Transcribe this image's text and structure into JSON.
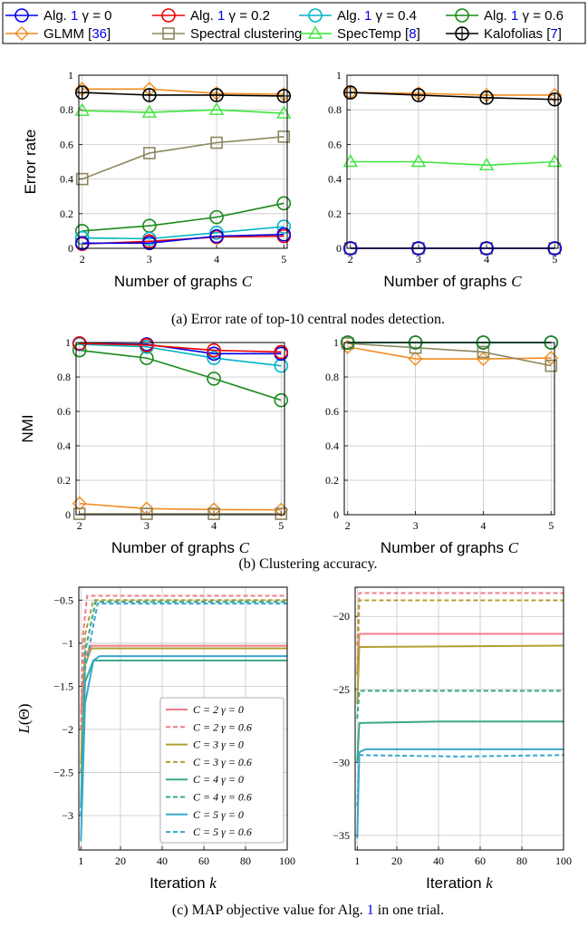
{
  "legend": {
    "entries": [
      {
        "key": "alg_g0",
        "label_pre": "Alg. ",
        "label_ref": "1",
        "label_post": " γ = 0"
      },
      {
        "key": "alg_g02",
        "label_pre": "Alg. ",
        "label_ref": "1",
        "label_post": " γ = 0.2"
      },
      {
        "key": "alg_g04",
        "label_pre": "Alg. ",
        "label_ref": "1",
        "label_post": " γ = 0.4"
      },
      {
        "key": "alg_g06",
        "label_pre": "Alg. ",
        "label_ref": "1",
        "label_post": " γ = 0.6"
      },
      {
        "key": "glmm",
        "label_pre": "GLMM [",
        "label_ref": "36",
        "label_post": "]"
      },
      {
        "key": "spectral",
        "label_pre": "Spectral clustering",
        "label_ref": "",
        "label_post": ""
      },
      {
        "key": "spectemp",
        "label_pre": "SpecTemp [",
        "label_ref": "8",
        "label_post": "]"
      },
      {
        "key": "kalofolias",
        "label_pre": "Kalofolias [",
        "label_ref": "7",
        "label_post": "]"
      }
    ]
  },
  "colors": {
    "alg_g0": "#0000ee",
    "alg_g02": "#ee0000",
    "alg_g04": "#00b4c8",
    "alg_g06": "#1a8a1a",
    "glmm": "#f28c1e",
    "spectral": "#8c8660",
    "spectemp": "#3ce63c",
    "kalofolias": "#000000",
    "c2": "#f07c8a",
    "c3": "#b0a030",
    "c4": "#3aa888",
    "c5": "#36a8cc",
    "link": "#0000ee",
    "grid": "#c8c8c8"
  },
  "captions": {
    "a": "(a) Error rate of top-10 central nodes detection.",
    "b": "(b) Clustering accuracy.",
    "c_pre": "(c) MAP objective value for Alg. ",
    "c_ref": "1",
    "c_post": " in one trial."
  },
  "chart_data": [
    {
      "id": "a_left",
      "type": "line",
      "xlabel": "Number of graphs C",
      "ylabel": "Error rate",
      "x": [
        2,
        3,
        4,
        5
      ],
      "xlim": [
        1.95,
        5.05
      ],
      "ylim": [
        0,
        1
      ],
      "xticks": [
        "2",
        "3",
        "4",
        "5"
      ],
      "yticks": [
        "0",
        "0.2",
        "0.4",
        "0.6",
        "0.8",
        "1"
      ],
      "grid": true,
      "series": [
        {
          "key": "glmm",
          "values": [
            0.92,
            0.92,
            0.895,
            0.89
          ]
        },
        {
          "key": "spectemp",
          "values": [
            0.795,
            0.785,
            0.8,
            0.78
          ]
        },
        {
          "key": "spectral",
          "values": [
            0.4,
            0.55,
            0.61,
            0.645
          ]
        },
        {
          "key": "alg_g06",
          "values": [
            0.1,
            0.13,
            0.18,
            0.26
          ]
        },
        {
          "key": "alg_g04",
          "values": [
            0.06,
            0.055,
            0.09,
            0.125
          ]
        },
        {
          "key": "alg_g02",
          "values": [
            0.025,
            0.04,
            0.065,
            0.07
          ]
        },
        {
          "key": "alg_g0",
          "values": [
            0.03,
            0.03,
            0.07,
            0.08
          ]
        },
        {
          "key": "kalofolias",
          "values": [
            0.9,
            0.885,
            0.885,
            0.88
          ]
        }
      ]
    },
    {
      "id": "a_right",
      "type": "line",
      "xlabel": "Number of graphs C",
      "ylabel": "",
      "x": [
        2,
        3,
        4,
        5
      ],
      "xlim": [
        1.95,
        5.05
      ],
      "ylim": [
        0,
        1
      ],
      "xticks": [
        "2",
        "3",
        "4",
        "5"
      ],
      "yticks": [
        "0",
        "0.2",
        "0.4",
        "0.6",
        "0.8",
        "1"
      ],
      "grid": true,
      "series": [
        {
          "key": "glmm",
          "values": [
            0.9,
            0.895,
            0.885,
            0.885
          ]
        },
        {
          "key": "spectemp",
          "values": [
            0.5,
            0.5,
            0.48,
            0.5
          ]
        },
        {
          "key": "spectral",
          "values": [
            0.0,
            0.0,
            0.0,
            0.0
          ]
        },
        {
          "key": "alg_g06",
          "values": [
            0.0,
            0.0,
            0.0,
            0.0
          ]
        },
        {
          "key": "alg_g04",
          "values": [
            0.0,
            0.0,
            0.0,
            0.0
          ]
        },
        {
          "key": "alg_g02",
          "values": [
            0.0,
            0.0,
            0.0,
            0.0
          ]
        },
        {
          "key": "alg_g0",
          "values": [
            0.0,
            0.0,
            0.0,
            0.0
          ]
        },
        {
          "key": "kalofolias",
          "values": [
            0.9,
            0.885,
            0.87,
            0.86
          ]
        }
      ]
    },
    {
      "id": "b_left",
      "type": "line",
      "xlabel": "Number of graphs C",
      "ylabel": "NMI",
      "x": [
        2,
        3,
        4,
        5
      ],
      "xlim": [
        1.95,
        5.05
      ],
      "ylim": [
        0,
        1
      ],
      "xticks": [
        "2",
        "3",
        "4",
        "5"
      ],
      "yticks": [
        "0",
        "0.2",
        "0.4",
        "0.6",
        "0.8",
        "1"
      ],
      "grid": true,
      "series": [
        {
          "key": "glmm",
          "values": [
            0.065,
            0.035,
            0.03,
            0.028
          ]
        },
        {
          "key": "spectral",
          "values": [
            0.005,
            0.005,
            0.005,
            0.005
          ]
        },
        {
          "key": "alg_g06",
          "values": [
            0.955,
            0.91,
            0.79,
            0.665
          ]
        },
        {
          "key": "alg_g04",
          "values": [
            0.99,
            0.975,
            0.91,
            0.865
          ]
        },
        {
          "key": "alg_g0",
          "values": [
            0.995,
            0.99,
            0.935,
            0.935
          ]
        },
        {
          "key": "alg_g02",
          "values": [
            0.995,
            0.985,
            0.955,
            0.945
          ]
        }
      ]
    },
    {
      "id": "b_right",
      "type": "line",
      "xlabel": "Number of graphs C",
      "ylabel": "",
      "x": [
        2,
        3,
        4,
        5
      ],
      "xlim": [
        1.95,
        5.05
      ],
      "ylim": [
        0,
        1
      ],
      "xticks": [
        "2",
        "3",
        "4",
        "5"
      ],
      "yticks": [
        "0",
        "0.2",
        "0.4",
        "0.6",
        "0.8",
        "1"
      ],
      "grid": true,
      "series": [
        {
          "key": "glmm",
          "values": [
            0.975,
            0.905,
            0.905,
            0.91
          ]
        },
        {
          "key": "spectral",
          "values": [
            0.995,
            0.97,
            0.945,
            0.865
          ]
        },
        {
          "key": "alg_g0",
          "values": [
            1.0,
            1.0,
            1.0,
            1.0
          ]
        },
        {
          "key": "alg_g02",
          "values": [
            1.0,
            1.0,
            1.0,
            1.0
          ]
        },
        {
          "key": "alg_g04",
          "values": [
            1.0,
            1.0,
            1.0,
            1.0
          ]
        },
        {
          "key": "alg_g06",
          "values": [
            1.0,
            1.0,
            1.0,
            1.0
          ]
        }
      ]
    },
    {
      "id": "c_left",
      "type": "line",
      "xlabel": "Iteration k",
      "ylabel": "L(Θ)",
      "xlim": [
        0,
        100
      ],
      "ylim": [
        -3.4,
        -0.35
      ],
      "xticks": [
        "1",
        "20",
        "40",
        "60",
        "80",
        "100"
      ],
      "xtick_values": [
        1,
        20,
        40,
        60,
        80,
        100
      ],
      "yticks": [
        "-3",
        "-2.5",
        "-2",
        "-1.5",
        "-1",
        "-0.5"
      ],
      "ytick_values": [
        -3,
        -2.5,
        -2,
        -1.5,
        -1,
        -0.5
      ],
      "grid": true,
      "legend_position": "lower-right",
      "series": [
        {
          "name": "C = 2  γ = 0",
          "color": "c2",
          "dash": false,
          "points": [
            [
              1,
              -1.8
            ],
            [
              3,
              -1.15
            ],
            [
              6,
              -1.03
            ],
            [
              100,
              -1.03
            ]
          ]
        },
        {
          "name": "C = 2  γ = 0.6",
          "color": "c2",
          "dash": true,
          "points": [
            [
              1,
              -2.0
            ],
            [
              2,
              -0.9
            ],
            [
              4,
              -0.45
            ],
            [
              100,
              -0.45
            ]
          ]
        },
        {
          "name": "C = 3  γ = 0",
          "color": "c3",
          "dash": false,
          "points": [
            [
              1,
              -2.4
            ],
            [
              3,
              -1.25
            ],
            [
              6,
              -1.06
            ],
            [
              100,
              -1.06
            ]
          ]
        },
        {
          "name": "C = 3  γ = 0.6",
          "color": "c3",
          "dash": true,
          "points": [
            [
              1,
              -2.5
            ],
            [
              3,
              -0.9
            ],
            [
              7,
              -0.5
            ],
            [
              100,
              -0.5
            ]
          ]
        },
        {
          "name": "C = 4  γ = 0",
          "color": "c4",
          "dash": false,
          "points": [
            [
              1,
              -2.9
            ],
            [
              3,
              -1.45
            ],
            [
              7,
              -1.2
            ],
            [
              100,
              -1.2
            ]
          ]
        },
        {
          "name": "C = 4  γ = 0.6",
          "color": "c4",
          "dash": true,
          "points": [
            [
              1,
              -2.9
            ],
            [
              3,
              -1.1
            ],
            [
              8,
              -0.52
            ],
            [
              100,
              -0.52
            ]
          ]
        },
        {
          "name": "C = 5  γ = 0",
          "color": "c5",
          "dash": false,
          "points": [
            [
              1,
              -3.3
            ],
            [
              3,
              -1.7
            ],
            [
              7,
              -1.2
            ],
            [
              10,
              -1.15
            ],
            [
              100,
              -1.15
            ]
          ]
        },
        {
          "name": "C = 5  γ = 0.6",
          "color": "c5",
          "dash": true,
          "points": [
            [
              1,
              -3.0
            ],
            [
              3,
              -1.3
            ],
            [
              9,
              -0.54
            ],
            [
              100,
              -0.54
            ]
          ]
        }
      ]
    },
    {
      "id": "c_right",
      "type": "line",
      "xlabel": "Iteration k",
      "ylabel": "",
      "xlim": [
        0,
        100
      ],
      "ylim": [
        -36,
        -18
      ],
      "xticks": [
        "1",
        "20",
        "40",
        "60",
        "80",
        "100"
      ],
      "xtick_values": [
        1,
        20,
        40,
        60,
        80,
        100
      ],
      "yticks": [
        "-35",
        "-30",
        "-25",
        "-20"
      ],
      "ytick_values": [
        -35,
        -30,
        -25,
        -20
      ],
      "grid": true,
      "series": [
        {
          "name": "C = 2  γ = 0",
          "color": "c2",
          "dash": false,
          "points": [
            [
              1,
              -24
            ],
            [
              2,
              -21.2
            ],
            [
              100,
              -21.2
            ]
          ]
        },
        {
          "name": "C = 2  γ = 0.6",
          "color": "c2",
          "dash": true,
          "points": [
            [
              1,
              -22
            ],
            [
              2,
              -18.4
            ],
            [
              100,
              -18.4
            ]
          ]
        },
        {
          "name": "C = 3  γ = 0",
          "color": "c3",
          "dash": false,
          "points": [
            [
              1,
              -26
            ],
            [
              2,
              -22.1
            ],
            [
              100,
              -22.0
            ]
          ]
        },
        {
          "name": "C = 3  γ = 0.6",
          "color": "c3",
          "dash": true,
          "points": [
            [
              1,
              -24
            ],
            [
              2,
              -18.9
            ],
            [
              100,
              -18.9
            ]
          ]
        },
        {
          "name": "C = 4  γ = 0",
          "color": "c4",
          "dash": false,
          "points": [
            [
              1,
              -30
            ],
            [
              2,
              -27.3
            ],
            [
              40,
              -27.2
            ],
            [
              100,
              -27.2
            ]
          ]
        },
        {
          "name": "C = 4  γ = 0.6",
          "color": "c4",
          "dash": true,
          "points": [
            [
              1,
              -27
            ],
            [
              2,
              -25.1
            ],
            [
              100,
              -25.1
            ]
          ]
        },
        {
          "name": "C = 5  γ = 0",
          "color": "c5",
          "dash": false,
          "points": [
            [
              1,
              -35.2
            ],
            [
              2,
              -29.3
            ],
            [
              5,
              -29.1
            ],
            [
              100,
              -29.1
            ]
          ]
        },
        {
          "name": "C = 5  γ = 0.6",
          "color": "c5",
          "dash": true,
          "points": [
            [
              1,
              -33
            ],
            [
              2,
              -29.5
            ],
            [
              50,
              -29.6
            ],
            [
              100,
              -29.5
            ]
          ]
        }
      ]
    }
  ]
}
